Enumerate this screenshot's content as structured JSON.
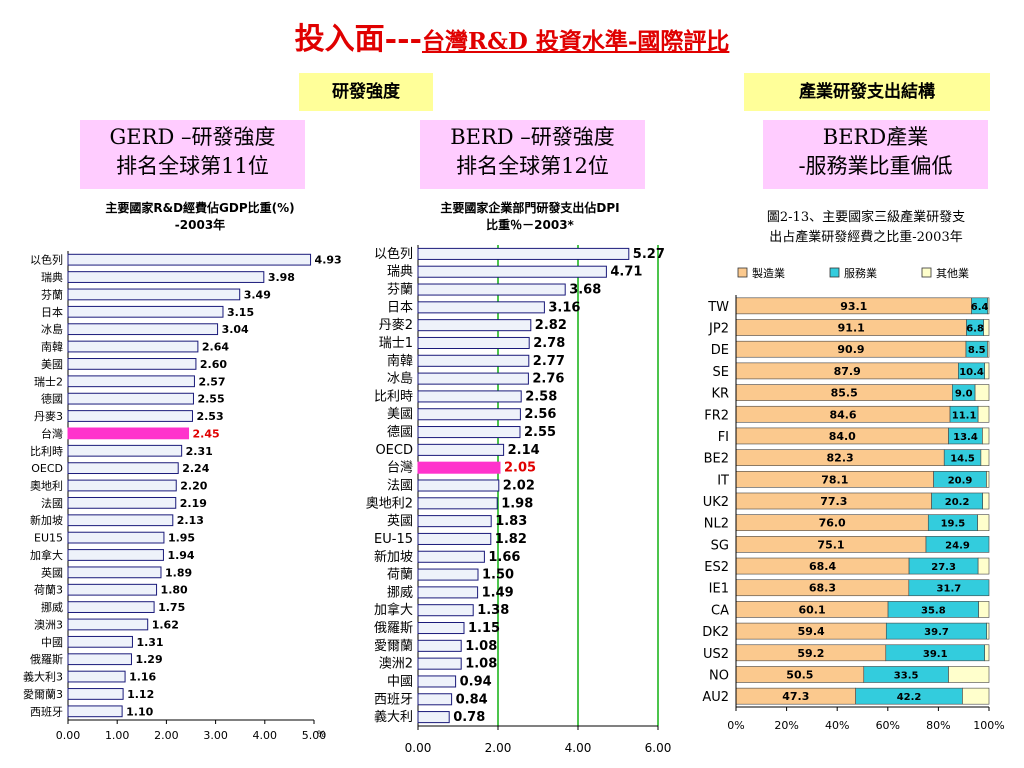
{
  "title": {
    "main": "投入面---",
    "sub": "台灣R&D 投資水準-國際評比"
  },
  "labels": {
    "intensity": "研發強度",
    "structure": "產業研發支出結構"
  },
  "boxes": {
    "gerd_l1": "GERD –研發強度",
    "gerd_l2": "排名全球第11位",
    "berd_l1": "BERD –研發強度",
    "berd_l2": "排名全球第12位",
    "ind_l1": "BERD產業",
    "ind_l2": "-服務業比重偏低"
  },
  "colors": {
    "highlight": "#ff33cc",
    "bar": "#eef2fa",
    "bar_edge": "#1a1a7a",
    "manufacturing": "#fbc98e",
    "service": "#33ccdd",
    "other": "#ffffcc",
    "grid": "#00aa00"
  },
  "chart_data": [
    {
      "type": "bar",
      "orientation": "horizontal",
      "title_l1": "主要國家R&D經費佔GDP比重(%)",
      "title_l2": "-2003年",
      "unit": "%",
      "categories": [
        "以色列",
        "瑞典",
        "芬蘭",
        "日本",
        "冰島",
        "南韓",
        "美國",
        "瑞士2",
        "德國",
        "丹麥3",
        "台灣",
        "比利時",
        "OECD",
        "奧地利",
        "法國",
        "新加坡",
        "EU15",
        "加拿大",
        "英國",
        "荷蘭3",
        "挪威",
        "澳洲3",
        "中國",
        "俄羅斯",
        "義大利3",
        "愛爾蘭3",
        "西班牙"
      ],
      "values": [
        4.93,
        3.98,
        3.49,
        3.15,
        3.04,
        2.64,
        2.6,
        2.57,
        2.55,
        2.53,
        2.45,
        2.31,
        2.24,
        2.2,
        2.19,
        2.13,
        1.95,
        1.94,
        1.89,
        1.8,
        1.75,
        1.62,
        1.31,
        1.29,
        1.16,
        1.12,
        1.1
      ],
      "value_labels": [
        "4.93",
        "3.98",
        "3.49",
        "3.15",
        "3.04",
        "2.64",
        "2.60",
        "2.57",
        "2.55",
        "2.53",
        "2.45",
        "2.31",
        "2.24",
        "2.20",
        "2.19",
        "2.13",
        "1.95",
        "1.94",
        "1.89",
        "1.80",
        "1.75",
        "1.62",
        "1.31",
        "1.29",
        "1.16",
        "1.12",
        "1.10"
      ],
      "highlight": "台灣",
      "xlim": [
        0,
        5
      ],
      "xticks": [
        "0.00",
        "1.00",
        "2.00",
        "3.00",
        "4.00",
        "5.00"
      ],
      "grid": false
    },
    {
      "type": "bar",
      "orientation": "horizontal",
      "title_l1": "主要國家企業部門研發支出佔DPI",
      "title_l2": "比重％－2003*",
      "categories": [
        "以色列",
        "瑞典",
        "芬蘭",
        "日本",
        "丹麥2",
        "瑞士1",
        "南韓",
        "冰島",
        "比利時",
        "美國",
        "德國",
        "OECD",
        "台灣",
        "法國",
        "奧地利2",
        "英國",
        "EU-15",
        "新加坡",
        "荷蘭",
        "挪威",
        "加拿大",
        "俄羅斯",
        "愛爾蘭",
        "澳洲2",
        "中國",
        "西班牙",
        "義大利"
      ],
      "values": [
        5.27,
        4.71,
        3.68,
        3.16,
        2.82,
        2.78,
        2.77,
        2.76,
        2.58,
        2.56,
        2.55,
        2.14,
        2.05,
        2.02,
        1.98,
        1.83,
        1.82,
        1.66,
        1.5,
        1.49,
        1.38,
        1.15,
        1.08,
        1.08,
        0.94,
        0.84,
        0.78
      ],
      "value_labels": [
        "5.27",
        "4.71",
        "3.68",
        "3.16",
        "2.82",
        "2.78",
        "2.77",
        "2.76",
        "2.58",
        "2.56",
        "2.55",
        "2.14",
        "2.05",
        "2.02",
        "1.98",
        "1.83",
        "1.82",
        "1.66",
        "1.50",
        "1.49",
        "1.38",
        "1.15",
        "1.08",
        "1.08",
        "0.94",
        "0.84",
        "0.78"
      ],
      "highlight": "台灣",
      "xlim": [
        0,
        6
      ],
      "xticks": [
        "0.00",
        "2.00",
        "4.00",
        "6.00"
      ],
      "grid": true
    },
    {
      "type": "bar",
      "orientation": "horizontal",
      "stacked": "percent",
      "title_l1": "圖2-13、主要國家三級產業研發支",
      "title_l2": "出占產業研發經費之比重-2003年",
      "categories": [
        "TW",
        "JP2",
        "DE",
        "SE",
        "KR",
        "FR2",
        "FI",
        "BE2",
        "IT",
        "UK2",
        "NL2",
        "SG",
        "ES2",
        "IE1",
        "CA",
        "DK2",
        "US2",
        "NO",
        "AU2"
      ],
      "series": [
        {
          "name": "製造業",
          "values": [
            93.1,
            91.1,
            90.9,
            87.9,
            85.5,
            84.6,
            84.0,
            82.3,
            78.1,
            77.3,
            76.0,
            75.1,
            68.4,
            68.3,
            60.1,
            59.4,
            59.2,
            50.5,
            47.3
          ]
        },
        {
          "name": "服務業",
          "values": [
            6.4,
            6.8,
            8.5,
            10.4,
            9.0,
            11.1,
            13.4,
            14.5,
            20.9,
            20.2,
            19.5,
            24.9,
            27.3,
            31.7,
            35.8,
            39.7,
            39.1,
            33.5,
            42.2
          ]
        },
        {
          "name": "其他業",
          "values": [
            0.5,
            2.1,
            0.6,
            1.7,
            5.5,
            4.3,
            2.6,
            3.2,
            1.0,
            2.5,
            4.5,
            0.0,
            4.3,
            0.0,
            4.1,
            0.9,
            1.7,
            16.0,
            10.5
          ]
        }
      ],
      "labels_mfg": [
        "93.1",
        "91.1",
        "90.9",
        "87.9",
        "85.5",
        "84.6",
        "84.0",
        "82.3",
        "78.1",
        "77.3",
        "76.0",
        "75.1",
        "68.4",
        "68.3",
        "60.1",
        "59.4",
        "59.2",
        "50.5",
        "47.3"
      ],
      "labels_svc": [
        "6.4",
        "6.8",
        "8.5",
        "10.4",
        "9.0",
        "11.1",
        "13.4",
        "14.5",
        "20.9",
        "20.2",
        "19.5",
        "24.9",
        "27.3",
        "31.7",
        "35.8",
        "39.7",
        "39.1",
        "33.5",
        "42.2"
      ],
      "xticks": [
        "0%",
        "20%",
        "40%",
        "60%",
        "80%",
        "100%"
      ],
      "legend_position": "top"
    }
  ]
}
